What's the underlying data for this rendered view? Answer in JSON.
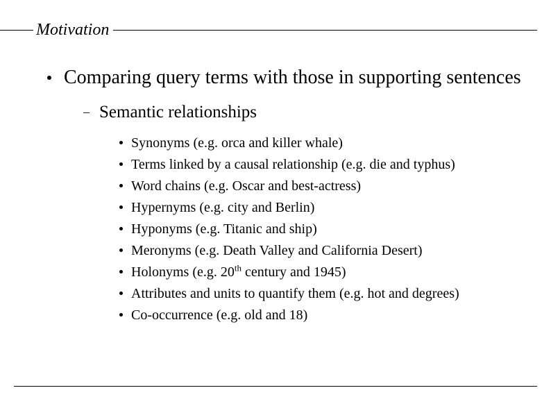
{
  "title": "Motivation",
  "main_bullet": "Comparing query terms with those in supporting sentences",
  "sub_bullet": "Semantic relationships",
  "items": [
    {
      "pre": "Synonyms (e.g. orca and killer whale)",
      "sup": "",
      "post": ""
    },
    {
      "pre": "Terms linked by a causal relationship (e.g. die and typhus)",
      "sup": "",
      "post": ""
    },
    {
      "pre": "Word chains (e.g. Oscar and best-actress)",
      "sup": "",
      "post": ""
    },
    {
      "pre": "Hypernyms (e.g. city and Berlin)",
      "sup": "",
      "post": ""
    },
    {
      "pre": "Hyponyms (e.g. Titanic and ship)",
      "sup": "",
      "post": ""
    },
    {
      "pre": "Meronyms (e.g. Death Valley and California Desert)",
      "sup": "",
      "post": ""
    },
    {
      "pre": "Holonyms (e.g. 20",
      "sup": "th",
      "post": " century and 1945)"
    },
    {
      "pre": "Attributes and units to quantify them (e.g. hot and degrees)",
      "sup": "",
      "post": ""
    },
    {
      "pre": "Co-occurrence (e.g. old and 18)",
      "sup": "",
      "post": ""
    }
  ]
}
